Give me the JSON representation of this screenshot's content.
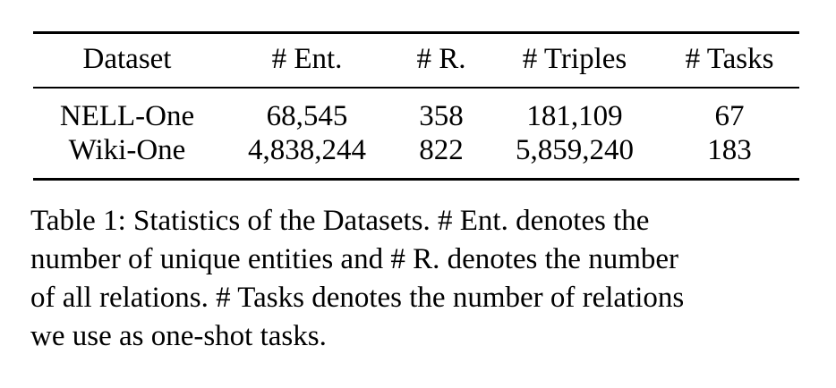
{
  "table": {
    "headers": [
      "Dataset",
      "# Ent.",
      "# R.",
      "# Triples",
      "# Tasks"
    ],
    "rows": [
      [
        "NELL-One",
        "68,545",
        "358",
        "181,109",
        "67"
      ],
      [
        "Wiki-One",
        "4,838,244",
        "822",
        "5,859,240",
        "183"
      ]
    ]
  },
  "caption": {
    "lines": [
      "Table 1: Statistics of the Datasets. # Ent. denotes the",
      "number of unique entities and # R. denotes the number",
      "of all relations. # Tasks denotes the number of relations",
      "we use as one-shot tasks."
    ]
  }
}
